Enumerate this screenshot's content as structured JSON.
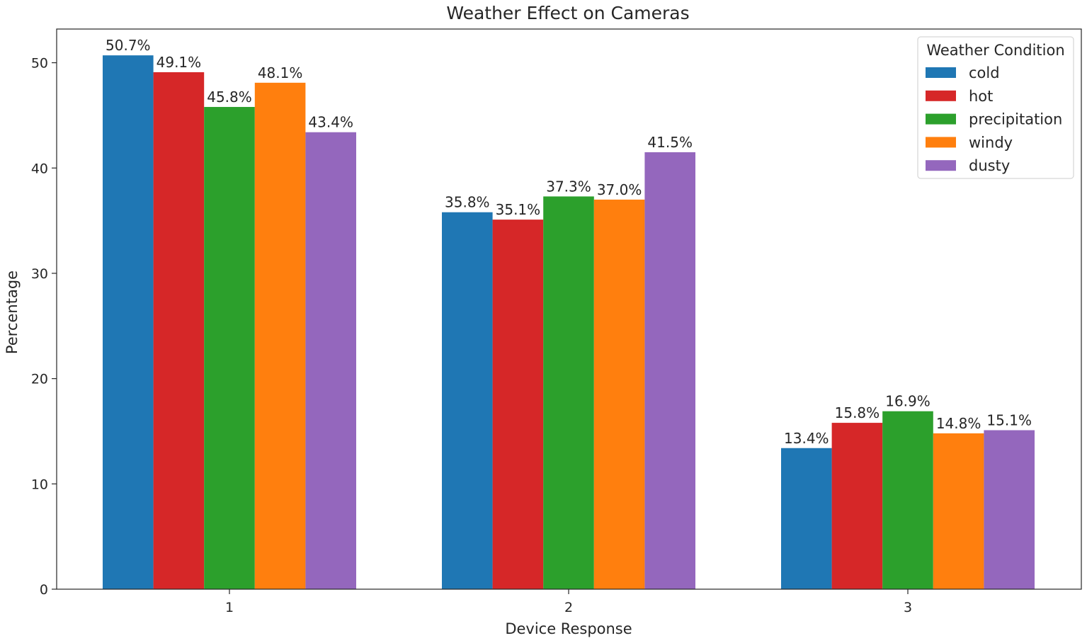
{
  "chart_data": {
    "type": "bar",
    "title": "Weather Effect on Cameras",
    "xlabel": "Device Response",
    "ylabel": "Percentage",
    "categories": [
      "1",
      "2",
      "3"
    ],
    "ylim": [
      0,
      53.2
    ],
    "yticks": [
      0,
      10,
      20,
      30,
      40,
      50
    ],
    "grid": false,
    "legend": {
      "title": "Weather Condition",
      "placement": "top-right"
    },
    "value_suffix": "%",
    "series": [
      {
        "name": "cold",
        "color": "#1f77b4",
        "values": [
          50.7,
          35.8,
          13.4
        ]
      },
      {
        "name": "hot",
        "color": "#d62728",
        "values": [
          49.1,
          35.1,
          15.8
        ]
      },
      {
        "name": "precipitation",
        "color": "#2ca02c",
        "values": [
          45.8,
          37.3,
          16.9
        ]
      },
      {
        "name": "windy",
        "color": "#ff7f0e",
        "values": [
          48.1,
          37.0,
          14.8
        ]
      },
      {
        "name": "dusty",
        "color": "#9467bd",
        "values": [
          43.4,
          41.5,
          15.1
        ]
      }
    ]
  }
}
